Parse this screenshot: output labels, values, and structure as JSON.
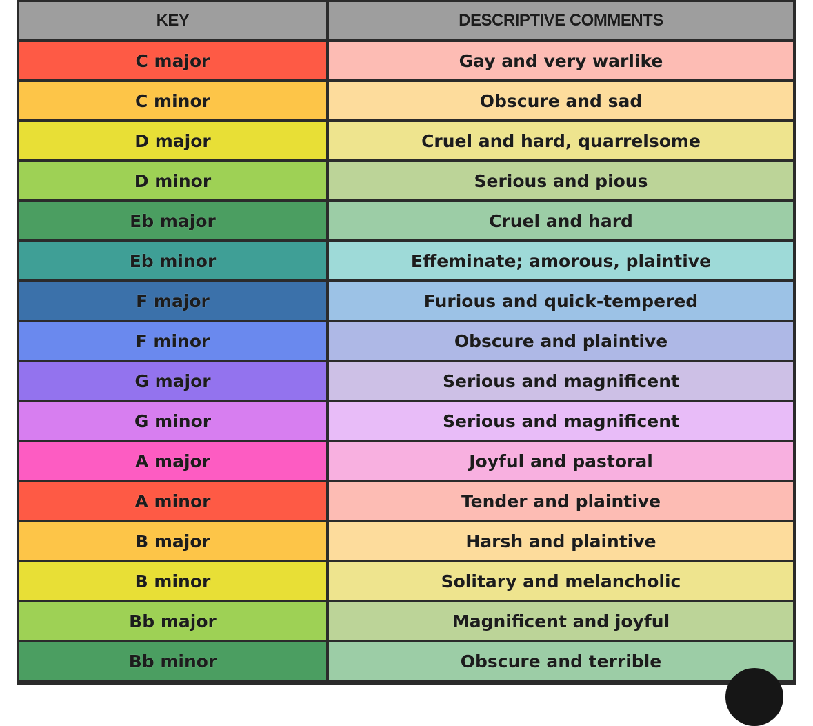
{
  "table": {
    "headers": {
      "key": "KEY",
      "comments": "DESCRIPTIVE COMMENTS"
    },
    "rows": [
      {
        "key": "C major",
        "comment": "Gay and very warlike",
        "key_color": "#fe5a45",
        "comment_color": "#fdbcb4"
      },
      {
        "key": "C minor",
        "comment": "Obscure and sad",
        "key_color": "#fdc548",
        "comment_color": "#fddc9c"
      },
      {
        "key": "D major",
        "comment": "Cruel and hard, quarrelsome",
        "key_color": "#e8df36",
        "comment_color": "#eee48e"
      },
      {
        "key": "D minor",
        "comment": "Serious and pious",
        "key_color": "#9ed155",
        "comment_color": "#bcd498"
      },
      {
        "key": "Eb major",
        "comment": "Cruel and hard",
        "key_color": "#4b9e61",
        "comment_color": "#9ccda6"
      },
      {
        "key": "Eb minor",
        "comment": "Effeminate; amorous, plaintive",
        "key_color": "#3f9f96",
        "comment_color": "#9edad8"
      },
      {
        "key": "F major",
        "comment": "Furious and quick-tempered",
        "key_color": "#3b71aa",
        "comment_color": "#9cc2e6"
      },
      {
        "key": "F minor",
        "comment": "Obscure and plaintive",
        "key_color": "#6a89ee",
        "comment_color": "#aeb8e6"
      },
      {
        "key": "G major",
        "comment": "Serious and magnificent",
        "key_color": "#9373ee",
        "comment_color": "#cdc0e6"
      },
      {
        "key": "G minor",
        "comment": "Serious and magnificent",
        "key_color": "#d77ef0",
        "comment_color": "#e8bcf8"
      },
      {
        "key": "A major",
        "comment": "Joyful and pastoral",
        "key_color": "#fd5cc2",
        "comment_color": "#f8b0e0"
      },
      {
        "key": "A minor",
        "comment": "Tender and plaintive",
        "key_color": "#fe5a45",
        "comment_color": "#fdbcb4"
      },
      {
        "key": "B major",
        "comment": "Harsh and plaintive",
        "key_color": "#fdc548",
        "comment_color": "#fddc9c"
      },
      {
        "key": "B minor",
        "comment": "Solitary and melancholic",
        "key_color": "#e8df36",
        "comment_color": "#eee48e"
      },
      {
        "key": "Bb major",
        "comment": "Magnificent and joyful",
        "key_color": "#9ed155",
        "comment_color": "#bcd498"
      },
      {
        "key": "Bb minor",
        "comment": "Obscure and terrible",
        "key_color": "#4b9e61",
        "comment_color": "#9ccda6"
      }
    ]
  }
}
